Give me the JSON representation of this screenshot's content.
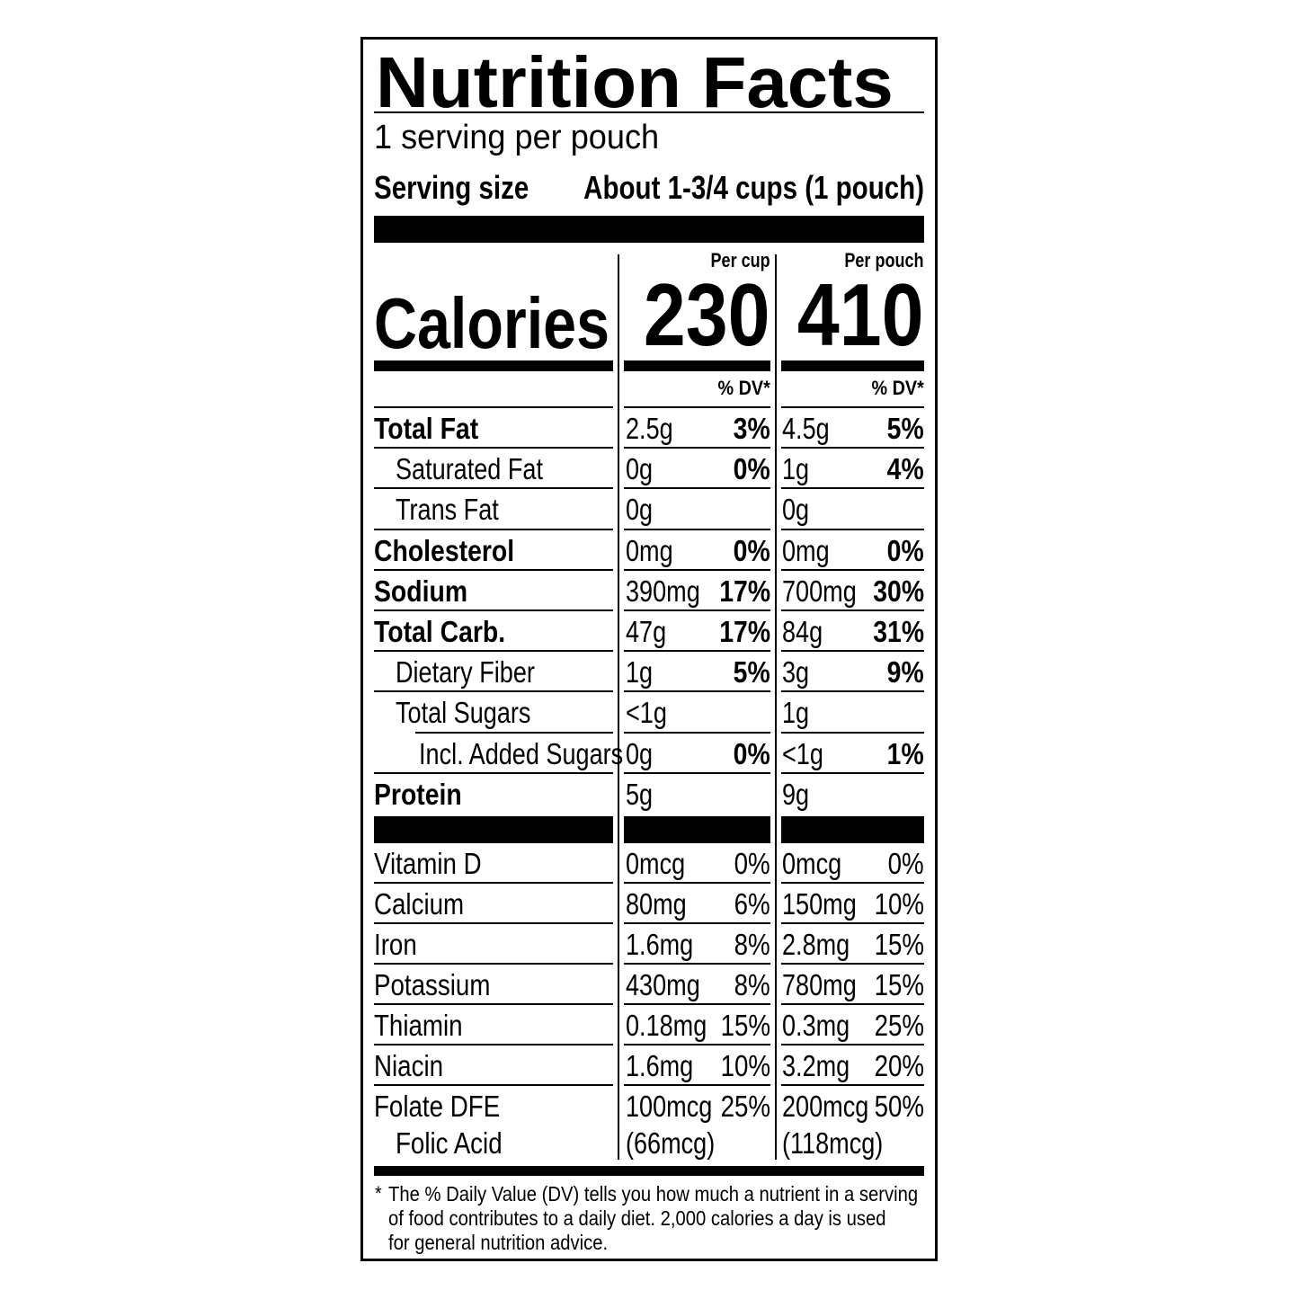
{
  "title": "Nutrition Facts",
  "servings": "1 serving per pouch",
  "serving_size": {
    "label": "Serving size",
    "value": "About 1-3/4 cups (1 pouch)"
  },
  "columns": [
    {
      "header": "Per cup",
      "calories": "230",
      "dv_label": "% DV*"
    },
    {
      "header": "Per pouch",
      "calories": "410",
      "dv_label": "% DV*"
    }
  ],
  "calories_label": "Calories",
  "nutrients": [
    {
      "label": "Total Fat",
      "level": 0,
      "bold": true,
      "cup": [
        "2.5g",
        "3%"
      ],
      "pouch": [
        "4.5g",
        "5%"
      ]
    },
    {
      "label": "Saturated Fat",
      "level": 1,
      "bold": false,
      "cup": [
        "0g",
        "0%"
      ],
      "pouch": [
        "1g",
        "4%"
      ]
    },
    {
      "label": "Trans Fat",
      "level": 1,
      "bold": false,
      "cup": [
        "0g",
        ""
      ],
      "pouch": [
        "0g",
        ""
      ]
    },
    {
      "label": "Cholesterol",
      "level": 0,
      "bold": true,
      "cup": [
        "0mg",
        "0%"
      ],
      "pouch": [
        "0mg",
        "0%"
      ]
    },
    {
      "label": "Sodium",
      "level": 0,
      "bold": true,
      "cup": [
        "390mg",
        "17%"
      ],
      "pouch": [
        "700mg",
        "30%"
      ]
    },
    {
      "label": "Total Carb.",
      "level": 0,
      "bold": true,
      "cup": [
        "47g",
        "17%"
      ],
      "pouch": [
        "84g",
        "31%"
      ]
    },
    {
      "label": "Dietary Fiber",
      "level": 1,
      "bold": false,
      "cup": [
        "1g",
        "5%"
      ],
      "pouch": [
        "3g",
        "9%"
      ]
    },
    {
      "label": "Total Sugars",
      "level": 1,
      "bold": false,
      "cup": [
        "<1g",
        ""
      ],
      "pouch": [
        "1g",
        ""
      ]
    },
    {
      "label": "Incl. Added Sugars",
      "level": 2,
      "bold": false,
      "cup": [
        "0g",
        "0%"
      ],
      "pouch": [
        "<1g",
        "1%"
      ]
    },
    {
      "label": "Protein",
      "level": 0,
      "bold": true,
      "cup": [
        "5g",
        ""
      ],
      "pouch": [
        "9g",
        ""
      ]
    }
  ],
  "vitamins": [
    {
      "label": "Vitamin D",
      "cup": [
        "0mcg",
        "0%"
      ],
      "pouch": [
        "0mcg",
        "0%"
      ]
    },
    {
      "label": "Calcium",
      "cup": [
        "80mg",
        "6%"
      ],
      "pouch": [
        "150mg",
        "10%"
      ]
    },
    {
      "label": "Iron",
      "cup": [
        "1.6mg",
        "8%"
      ],
      "pouch": [
        "2.8mg",
        "15%"
      ]
    },
    {
      "label": "Potassium",
      "cup": [
        "430mg",
        "8%"
      ],
      "pouch": [
        "780mg",
        "15%"
      ]
    },
    {
      "label": "Thiamin",
      "cup": [
        "0.18mg",
        "15%"
      ],
      "pouch": [
        "0.3mg",
        "25%"
      ]
    },
    {
      "label": "Niacin",
      "cup": [
        "1.6mg",
        "10%"
      ],
      "pouch": [
        "3.2mg",
        "20%"
      ]
    },
    {
      "label": "Folate DFE",
      "cup": [
        "100mcg",
        "25%"
      ],
      "pouch": [
        "200mcg",
        "50%"
      ],
      "sub": {
        "label": "Folic Acid",
        "cup": "(66mcg)",
        "pouch": "(118mcg)"
      }
    }
  ],
  "footnote": {
    "star": "*",
    "lines": [
      "The % Daily Value (DV) tells you how much a nutrient in a serving",
      "of food contributes to a daily diet. 2,000 calories a day is used",
      "for general nutrition advice."
    ]
  }
}
